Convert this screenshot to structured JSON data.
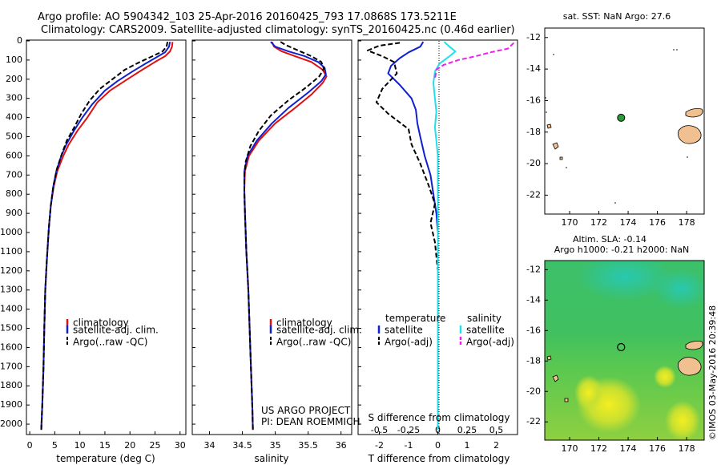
{
  "header": {
    "title_line1": "Argo profile: AO 5904342_103 25-Apr-2016 20160425_793 17.0868S 173.5211E",
    "title_line2": "Climatology: CARS2009. Satellite-adjusted climatology: synTS_20160425.nc (0.46d earlier)"
  },
  "colors": {
    "climatology": "#e01010",
    "satellite": "#1020d0",
    "argo": "#000000",
    "satellite_salinity": "#20e0ee",
    "argo_salinity": "#ee20ee",
    "float_marker": "#2a9a3a",
    "land": "#f0c090"
  },
  "depth_axis": {
    "min": 0,
    "max": 2050,
    "ticks": [
      0,
      100,
      200,
      300,
      400,
      500,
      600,
      700,
      800,
      900,
      1000,
      1100,
      1200,
      1300,
      1400,
      1500,
      1600,
      1700,
      1800,
      1900,
      2000
    ]
  },
  "chart_data": [
    {
      "id": "temperature",
      "type": "line",
      "xlabel": "temperature (deg C)",
      "xlim": [
        -0.5,
        31
      ],
      "xticks": [
        0,
        5,
        10,
        15,
        20,
        25,
        30
      ],
      "ylim": [
        0,
        2050
      ],
      "y_inverted": true,
      "legend": {
        "position": "lower-left",
        "entries": [
          "climatology",
          "satellite-adj. clim.",
          "Argo(..raw -QC)"
        ]
      },
      "series": [
        {
          "name": "climatology",
          "style": "solid",
          "color_key": "climatology",
          "points": [
            [
              28.5,
              5
            ],
            [
              28.4,
              30
            ],
            [
              28,
              55
            ],
            [
              27,
              80
            ],
            [
              25,
              110
            ],
            [
              22.5,
              150
            ],
            [
              19.5,
              200
            ],
            [
              16,
              260
            ],
            [
              13.5,
              320
            ],
            [
              11.5,
              400
            ],
            [
              9.5,
              470
            ],
            [
              7.8,
              540
            ],
            [
              6.7,
              600
            ],
            [
              5.5,
              680
            ],
            [
              4.8,
              760
            ],
            [
              4.2,
              860
            ],
            [
              3.8,
              980
            ],
            [
              3.4,
              1150
            ],
            [
              3.1,
              1300
            ],
            [
              2.9,
              1500
            ],
            [
              2.75,
              1700
            ],
            [
              2.5,
              1900
            ],
            [
              2.3,
              2030
            ]
          ]
        },
        {
          "name": "satellite-adj. clim.",
          "style": "solid",
          "color_key": "satellite",
          "points": [
            [
              28,
              5
            ],
            [
              27.8,
              30
            ],
            [
              27,
              60
            ],
            [
              25,
              90
            ],
            [
              23,
              120
            ],
            [
              20.5,
              160
            ],
            [
              17.5,
              210
            ],
            [
              15,
              260
            ],
            [
              12.5,
              330
            ],
            [
              10.5,
              400
            ],
            [
              8.8,
              470
            ],
            [
              7.3,
              540
            ],
            [
              6.3,
              600
            ],
            [
              5.3,
              680
            ],
            [
              4.7,
              760
            ],
            [
              4.2,
              860
            ],
            [
              3.8,
              980
            ],
            [
              3.4,
              1150
            ],
            [
              3.1,
              1300
            ],
            [
              2.9,
              1500
            ],
            [
              2.75,
              1700
            ],
            [
              2.5,
              1900
            ],
            [
              2.3,
              2030
            ]
          ]
        },
        {
          "name": "Argo(..raw -QC)",
          "style": "dashed",
          "color_key": "argo",
          "points": [
            [
              27.5,
              5
            ],
            [
              27.3,
              30
            ],
            [
              26.5,
              55
            ],
            [
              24.5,
              80
            ],
            [
              22,
              110
            ],
            [
              19,
              150
            ],
            [
              16.5,
              200
            ],
            [
              14,
              250
            ],
            [
              12,
              310
            ],
            [
              10.3,
              380
            ],
            [
              8.9,
              450
            ],
            [
              7.4,
              520
            ],
            [
              6.4,
              590
            ],
            [
              5.4,
              670
            ],
            [
              4.7,
              760
            ],
            [
              4.2,
              860
            ],
            [
              3.8,
              980
            ],
            [
              3.4,
              1150
            ],
            [
              3.1,
              1300
            ],
            [
              2.9,
              1500
            ],
            [
              2.75,
              1700
            ],
            [
              2.5,
              1900
            ],
            [
              2.3,
              2030
            ]
          ]
        }
      ]
    },
    {
      "id": "salinity",
      "type": "line",
      "xlabel": "salinity",
      "xlim": [
        33.75,
        36.15
      ],
      "xticks": [
        34,
        34.5,
        35,
        35.5,
        36
      ],
      "ylim": [
        0,
        2050
      ],
      "y_inverted": true,
      "legend": {
        "position": "lower-left",
        "entries": [
          "climatology",
          "satellite-adj. clim.",
          "Argo(..raw -QC)"
        ]
      },
      "annotation": [
        "US ARGO PROJECT",
        "PI: DEAN ROEMMICH"
      ],
      "series": [
        {
          "name": "climatology",
          "style": "solid",
          "color_key": "climatology",
          "points": [
            [
              34.95,
              5
            ],
            [
              34.98,
              30
            ],
            [
              35.1,
              55
            ],
            [
              35.3,
              80
            ],
            [
              35.55,
              110
            ],
            [
              35.72,
              150
            ],
            [
              35.78,
              185
            ],
            [
              35.72,
              220
            ],
            [
              35.55,
              280
            ],
            [
              35.3,
              350
            ],
            [
              35.0,
              430
            ],
            [
              34.75,
              520
            ],
            [
              34.6,
              600
            ],
            [
              34.54,
              680
            ],
            [
              34.53,
              780
            ],
            [
              34.54,
              900
            ],
            [
              34.56,
              1100
            ],
            [
              34.59,
              1300
            ],
            [
              34.61,
              1500
            ],
            [
              34.63,
              1700
            ],
            [
              34.65,
              1900
            ],
            [
              34.66,
              2030
            ]
          ]
        },
        {
          "name": "satellite-adj. clim.",
          "style": "solid",
          "color_key": "satellite",
          "points": [
            [
              34.93,
              5
            ],
            [
              35.0,
              30
            ],
            [
              35.2,
              55
            ],
            [
              35.45,
              80
            ],
            [
              35.65,
              110
            ],
            [
              35.75,
              140
            ],
            [
              35.77,
              175
            ],
            [
              35.7,
              210
            ],
            [
              35.5,
              270
            ],
            [
              35.2,
              350
            ],
            [
              34.95,
              430
            ],
            [
              34.72,
              520
            ],
            [
              34.58,
              600
            ],
            [
              34.53,
              680
            ],
            [
              34.53,
              780
            ],
            [
              34.54,
              900
            ],
            [
              34.56,
              1100
            ],
            [
              34.59,
              1300
            ],
            [
              34.61,
              1500
            ],
            [
              34.63,
              1700
            ],
            [
              34.65,
              1900
            ],
            [
              34.66,
              2030
            ]
          ]
        },
        {
          "name": "Argo(..raw -QC)",
          "style": "dashed",
          "color_key": "argo",
          "points": [
            [
              35.08,
              5
            ],
            [
              35.15,
              20
            ],
            [
              35.35,
              50
            ],
            [
              35.55,
              80
            ],
            [
              35.7,
              110
            ],
            [
              35.74,
              145
            ],
            [
              35.67,
              185
            ],
            [
              35.48,
              240
            ],
            [
              35.2,
              310
            ],
            [
              34.93,
              390
            ],
            [
              34.75,
              470
            ],
            [
              34.62,
              550
            ],
            [
              34.55,
              630
            ],
            [
              34.53,
              700
            ],
            [
              34.53,
              800
            ],
            [
              34.54,
              900
            ],
            [
              34.56,
              1100
            ],
            [
              34.59,
              1300
            ],
            [
              34.61,
              1500
            ],
            [
              34.63,
              1700
            ],
            [
              34.65,
              1900
            ],
            [
              34.66,
              2030
            ]
          ]
        }
      ]
    },
    {
      "id": "difference",
      "type": "line",
      "xlabel": "T difference from climatology",
      "xlabel_top": "S difference from climatology",
      "xlim": [
        -2.7,
        2.7
      ],
      "xticks": [
        -2,
        -1,
        0,
        1,
        2
      ],
      "sticks": [
        -0.5,
        -0.25,
        0,
        0.25,
        0.5
      ],
      "ylim": [
        0,
        2050
      ],
      "y_inverted": true,
      "legend": {
        "position": "lower-left",
        "temperature_heading": "temperature",
        "salinity_heading": "salinity",
        "entries": [
          "satellite",
          "Argo(-adj)",
          "satellite",
          "Argo(-adj)"
        ]
      },
      "series": [
        {
          "name": "temperature satellite",
          "style": "solid",
          "color_key": "satellite",
          "points": [
            [
              -0.5,
              5
            ],
            [
              -0.6,
              30
            ],
            [
              -1.0,
              60
            ],
            [
              -1.3,
              90
            ],
            [
              -1.6,
              130
            ],
            [
              -1.7,
              170
            ],
            [
              -1.3,
              230
            ],
            [
              -0.9,
              300
            ],
            [
              -0.75,
              360
            ],
            [
              -0.7,
              430
            ],
            [
              -0.6,
              500
            ],
            [
              -0.45,
              600
            ],
            [
              -0.25,
              700
            ],
            [
              -0.15,
              800
            ],
            [
              -0.05,
              900
            ],
            [
              0,
              1000
            ],
            [
              0,
              1400
            ],
            [
              0,
              2030
            ]
          ]
        },
        {
          "name": "temperature Argo(-adj)",
          "style": "dashed",
          "color_key": "argo",
          "points": [
            [
              -1.3,
              10
            ],
            [
              -2.0,
              25
            ],
            [
              -2.4,
              50
            ],
            [
              -1.9,
              80
            ],
            [
              -1.5,
              110
            ],
            [
              -1.4,
              170
            ],
            [
              -1.9,
              250
            ],
            [
              -2.1,
              320
            ],
            [
              -1.7,
              380
            ],
            [
              -1.0,
              460
            ],
            [
              -0.9,
              540
            ],
            [
              -0.6,
              640
            ],
            [
              -0.3,
              760
            ],
            [
              -0.1,
              850
            ],
            [
              -0.25,
              950
            ],
            [
              -0.1,
              1050
            ],
            [
              0,
              1200
            ],
            [
              0,
              1400
            ],
            [
              0,
              1700
            ],
            [
              0,
              2030
            ]
          ]
        },
        {
          "name": "salinity satellite",
          "style": "solid",
          "color_key": "satellite_salinity",
          "points": [
            [
              0.22,
              5
            ],
            [
              0.4,
              30
            ],
            [
              0.6,
              55
            ],
            [
              0.4,
              80
            ],
            [
              0.05,
              120
            ],
            [
              -0.1,
              160
            ],
            [
              -0.15,
              220
            ],
            [
              -0.1,
              300
            ],
            [
              -0.05,
              370
            ],
            [
              -0.1,
              450
            ],
            [
              -0.05,
              520
            ],
            [
              0,
              600
            ],
            [
              0,
              800
            ],
            [
              0,
              1000
            ],
            [
              0,
              1300
            ],
            [
              0,
              1600
            ],
            [
              0,
              2030
            ]
          ]
        },
        {
          "name": "salinity Argo(-adj)",
          "style": "dashed",
          "color_key": "argo_salinity",
          "points": [
            [
              2.6,
              10
            ],
            [
              2.4,
              40
            ],
            [
              1.8,
              60
            ],
            [
              1.3,
              80
            ],
            [
              0.7,
              100
            ],
            [
              0.2,
              125
            ],
            [
              -0.05,
              150
            ],
            [
              -0.1,
              200
            ]
          ]
        }
      ]
    }
  ],
  "map_sst": {
    "title": "sat. SST: NaN Argo: 27.6",
    "lon_ticks": [
      170,
      172,
      174,
      176,
      178
    ],
    "lat_ticks": [
      -12,
      -14,
      -16,
      -18,
      -20,
      -22
    ],
    "lon_range": [
      168.3,
      179.2
    ],
    "lat_range": [
      -23.2,
      -11.4
    ],
    "float": {
      "lon": 173.52,
      "lat": -17.09
    }
  },
  "map_sla": {
    "title_line1": "Altim. SLA: -0.14",
    "title_line2": "Argo h1000: -0.21 h2000: NaN",
    "lon_ticks": [
      170,
      172,
      174,
      176,
      178
    ],
    "lat_ticks": [
      -12,
      -14,
      -16,
      -18,
      -20,
      -22
    ],
    "lon_range": [
      168.3,
      179.2
    ],
    "lat_range": [
      -23.2,
      -11.4
    ],
    "float": {
      "lon": 173.52,
      "lat": -17.09
    }
  },
  "footer": {
    "credit": "©IMOS 03-May-2016 20:39:48"
  }
}
